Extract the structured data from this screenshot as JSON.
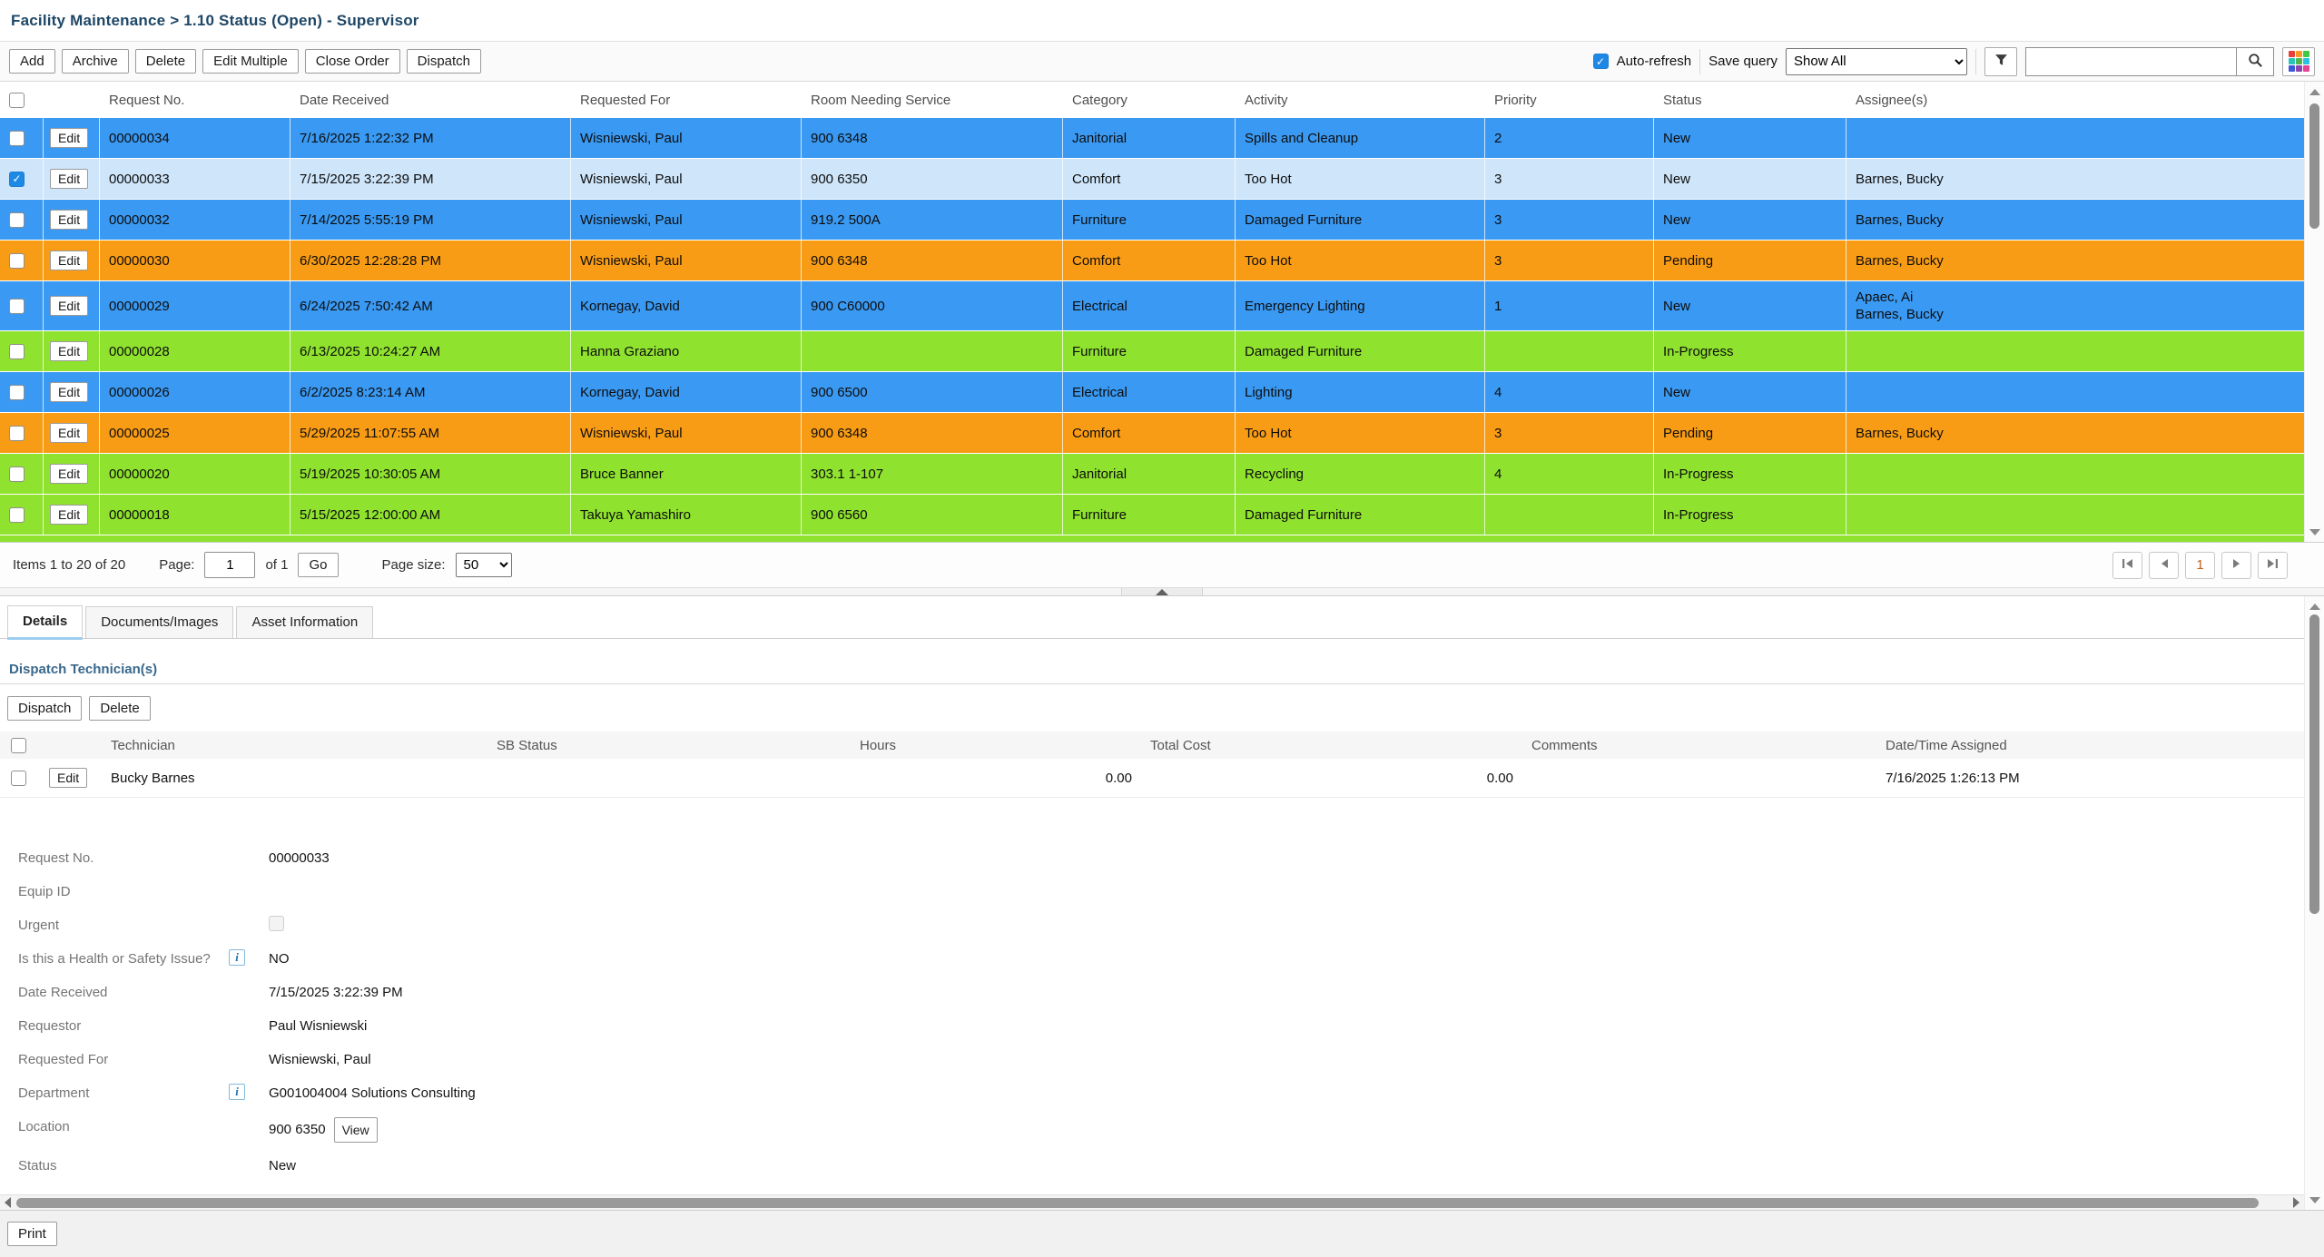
{
  "header": {
    "title": "Facility Maintenance  > 1.10 Status (Open) - Supervisor"
  },
  "toolbar": {
    "buttons": [
      "Add",
      "Archive",
      "Delete",
      "Edit Multiple",
      "Close Order",
      "Dispatch"
    ],
    "auto_refresh_label": "Auto-refresh",
    "auto_refresh_checked": true,
    "save_query_label": "Save query",
    "save_query_value": "Show All",
    "search_value": ""
  },
  "grid": {
    "edit_label": "Edit",
    "columns": [
      "Request No.",
      "Date Received",
      "Requested For",
      "Room Needing Service",
      "Category",
      "Activity",
      "Priority",
      "Status",
      "Assignee(s)"
    ],
    "rows": [
      {
        "checked": false,
        "color": "blue",
        "request_no": "00000034",
        "date_received": "7/16/2025 1:22:32 PM",
        "requested_for": "Wisniewski, Paul",
        "room": "900 6348",
        "category": "Janitorial",
        "activity": "Spills and Cleanup",
        "priority": "2",
        "status": "New",
        "assignees": []
      },
      {
        "checked": true,
        "color": "selected",
        "request_no": "00000033",
        "date_received": "7/15/2025 3:22:39 PM",
        "requested_for": "Wisniewski, Paul",
        "room": "900 6350",
        "category": "Comfort",
        "activity": "Too Hot",
        "priority": "3",
        "status": "New",
        "assignees": [
          "Barnes, Bucky"
        ]
      },
      {
        "checked": false,
        "color": "blue",
        "request_no": "00000032",
        "date_received": "7/14/2025 5:55:19 PM",
        "requested_for": "Wisniewski, Paul",
        "room": "919.2 500A",
        "category": "Furniture",
        "activity": "Damaged Furniture",
        "priority": "3",
        "status": "New",
        "assignees": [
          "Barnes, Bucky"
        ]
      },
      {
        "checked": false,
        "color": "orange",
        "request_no": "00000030",
        "date_received": "6/30/2025 12:28:28 PM",
        "requested_for": "Wisniewski, Paul",
        "room": "900 6348",
        "category": "Comfort",
        "activity": "Too Hot",
        "priority": "3",
        "status": "Pending",
        "assignees": [
          "Barnes, Bucky"
        ]
      },
      {
        "checked": false,
        "color": "blue",
        "request_no": "00000029",
        "date_received": "6/24/2025 7:50:42 AM",
        "requested_for": "Kornegay, David",
        "room": "900 C60000",
        "category": "Electrical",
        "activity": "Emergency Lighting",
        "priority": "1",
        "status": "New",
        "assignees": [
          "Apaec, Ai",
          "Barnes, Bucky"
        ]
      },
      {
        "checked": false,
        "color": "green",
        "request_no": "00000028",
        "date_received": "6/13/2025 10:24:27 AM",
        "requested_for": "Hanna Graziano",
        "room": "",
        "category": "Furniture",
        "activity": "Damaged Furniture",
        "priority": "",
        "status": "In-Progress",
        "assignees": []
      },
      {
        "checked": false,
        "color": "blue",
        "request_no": "00000026",
        "date_received": "6/2/2025 8:23:14 AM",
        "requested_for": "Kornegay, David",
        "room": "900 6500",
        "category": "Electrical",
        "activity": "Lighting",
        "priority": "4",
        "status": "New",
        "assignees": []
      },
      {
        "checked": false,
        "color": "orange",
        "request_no": "00000025",
        "date_received": "5/29/2025 11:07:55 AM",
        "requested_for": "Wisniewski, Paul",
        "room": "900 6348",
        "category": "Comfort",
        "activity": "Too Hot",
        "priority": "3",
        "status": "Pending",
        "assignees": [
          "Barnes, Bucky"
        ]
      },
      {
        "checked": false,
        "color": "green",
        "request_no": "00000020",
        "date_received": "5/19/2025 10:30:05 AM",
        "requested_for": "Bruce Banner",
        "room": "303.1 1-107",
        "category": "Janitorial",
        "activity": "Recycling",
        "priority": "4",
        "status": "In-Progress",
        "assignees": []
      },
      {
        "checked": false,
        "color": "green",
        "request_no": "00000018",
        "date_received": "5/15/2025 12:00:00 AM",
        "requested_for": "Takuya Yamashiro",
        "room": "900 6560",
        "category": "Furniture",
        "activity": "Damaged Furniture",
        "priority": "",
        "status": "In-Progress",
        "assignees": []
      }
    ]
  },
  "pagination": {
    "items_text": "Items 1 to 20 of 20",
    "page_label": "Page:",
    "page_value": "1",
    "of_text": "of 1",
    "go_label": "Go",
    "page_size_label": "Page size:",
    "page_size_value": "50",
    "current_page": "1"
  },
  "tabs": {
    "items": [
      "Details",
      "Documents/Images",
      "Asset Information"
    ],
    "active": "Details"
  },
  "dispatch": {
    "section_title": "Dispatch Technician(s)",
    "buttons": [
      "Dispatch",
      "Delete"
    ],
    "edit_label": "Edit",
    "columns": [
      "Technician",
      "SB Status",
      "Hours",
      "Total Cost",
      "Comments",
      "Date/Time Assigned"
    ],
    "rows": [
      {
        "technician": "Bucky Barnes",
        "sb_status": "",
        "hours": "0.00",
        "total_cost": "0.00",
        "comments": "",
        "date_time_assigned": "7/16/2025 1:26:13 PM"
      }
    ]
  },
  "details": {
    "view_label": "View",
    "fields": [
      {
        "label": "Request No.",
        "value": "00000033"
      },
      {
        "label": "Equip ID",
        "value": ""
      },
      {
        "label": "Urgent",
        "type": "checkbox",
        "checked": false
      },
      {
        "label": "Is this a Health or Safety Issue?",
        "value": "NO",
        "info": true
      },
      {
        "label": "Date Received",
        "value": "7/15/2025 3:22:39 PM"
      },
      {
        "label": "Requestor",
        "value": "Paul Wisniewski"
      },
      {
        "label": "Requested For",
        "value": "Wisniewski, Paul"
      },
      {
        "label": "Department",
        "value": "G001004004 Solutions Consulting",
        "info": true
      },
      {
        "label": "Location",
        "value": "900 6350",
        "view_button": true
      },
      {
        "label": "Status",
        "value": "New"
      }
    ]
  },
  "footer": {
    "print_label": "Print"
  },
  "colors": {
    "row_blue": "#3a99f2",
    "row_selected": "#cee5fa",
    "row_orange": "#f99c15",
    "row_green": "#8fe22e",
    "title_text": "#1e4766",
    "section_heading": "#39688c",
    "checkbox_checked": "#1e88e5",
    "current_page_text": "#c06018",
    "legend_grid": [
      "#e8413c",
      "#f59b22",
      "#3fc944",
      "#29c5b7",
      "#4eb84e",
      "#2bc0e4",
      "#3b59d8",
      "#8e44ad",
      "#e84393"
    ]
  }
}
